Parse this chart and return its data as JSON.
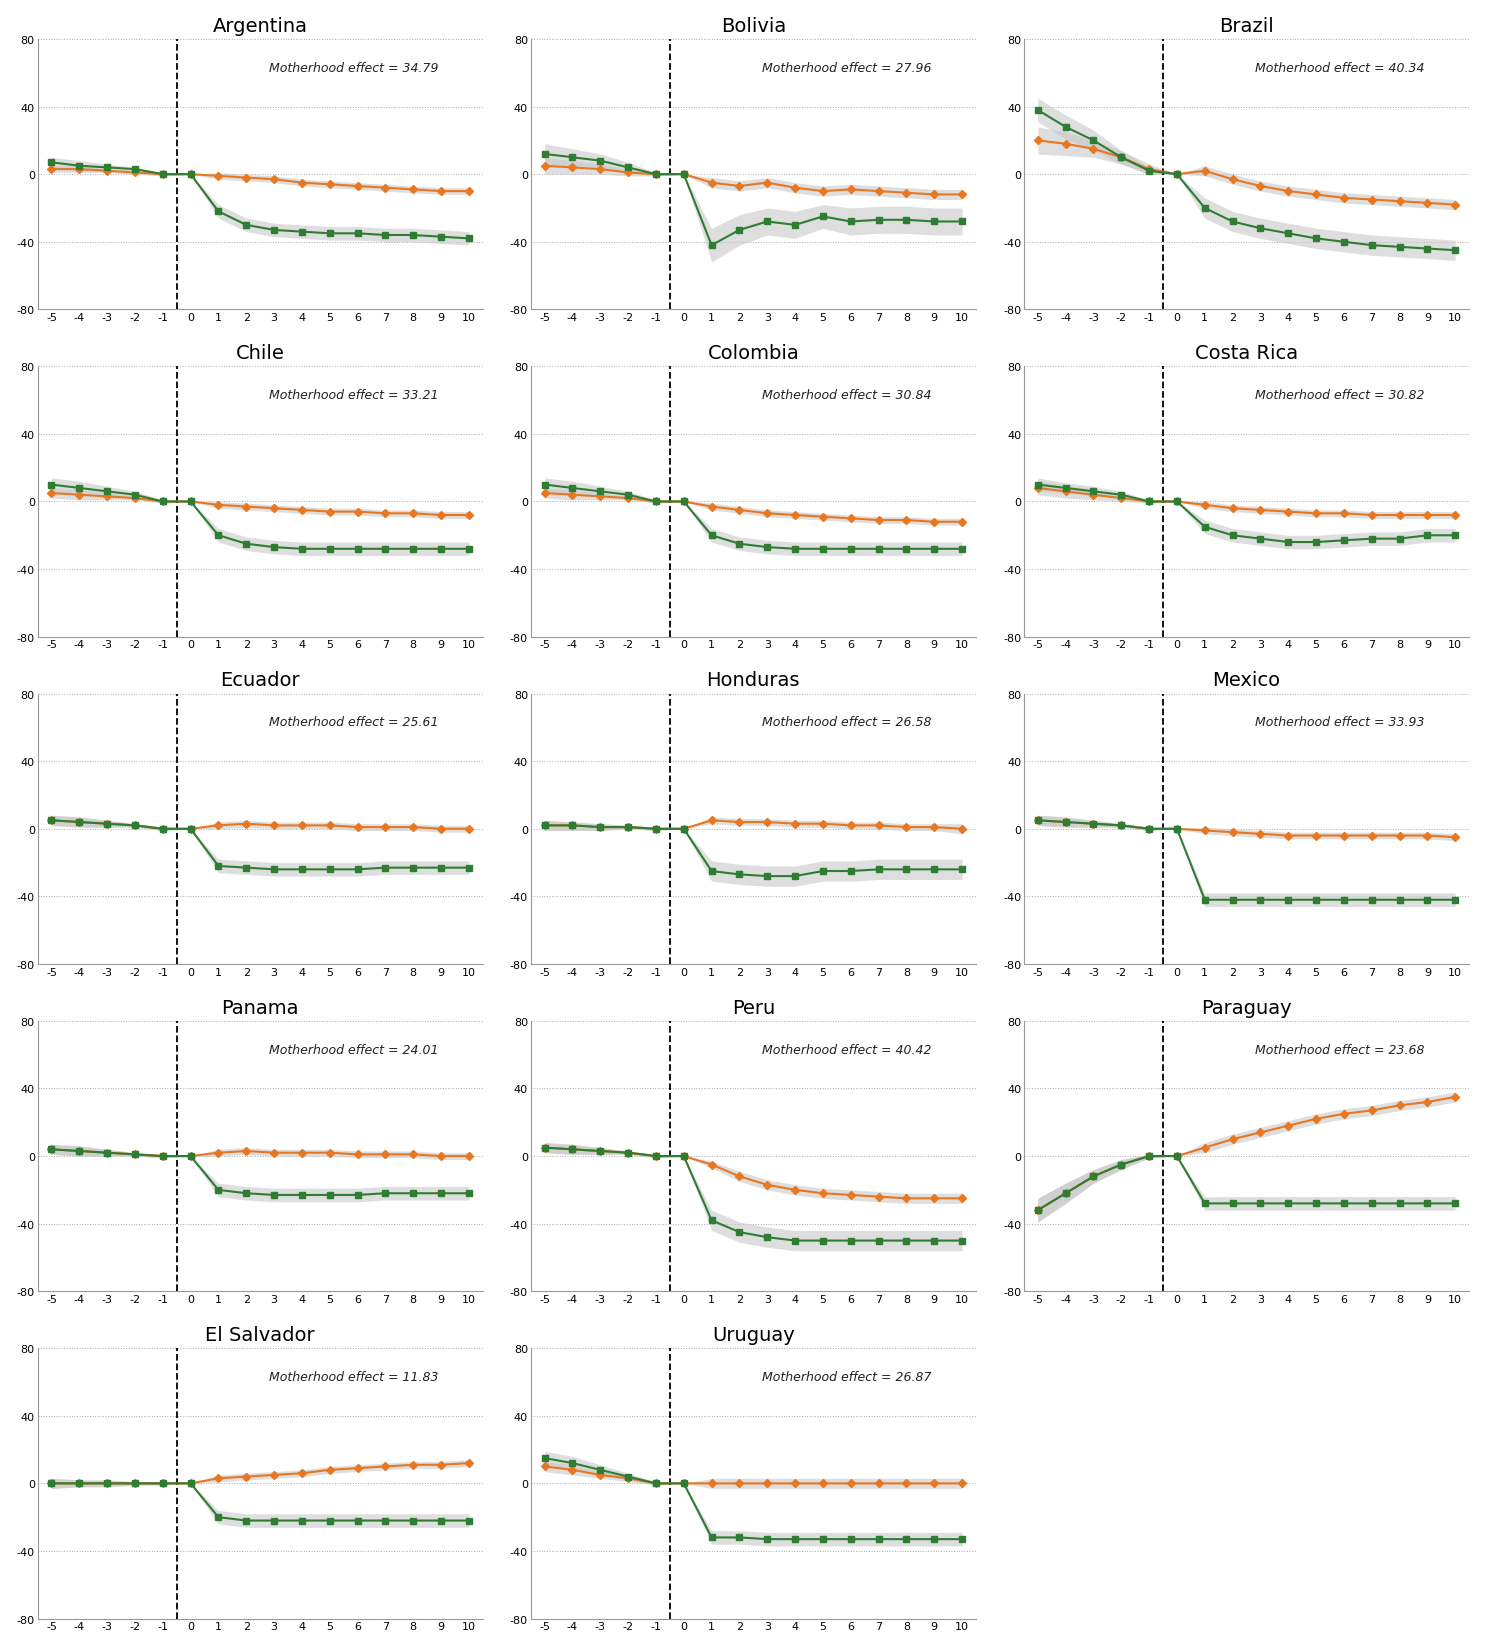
{
  "countries": [
    "Argentina",
    "Bolivia",
    "Brazil",
    "Chile",
    "Colombia",
    "Costa Rica",
    "Ecuador",
    "Honduras",
    "Mexico",
    "Panama",
    "Peru",
    "Paraguay",
    "El Salvador",
    "Uruguay"
  ],
  "motherhood_effects": {
    "Argentina": 34.79,
    "Bolivia": 27.96,
    "Brazil": 40.34,
    "Chile": 33.21,
    "Colombia": 30.84,
    "Costa Rica": 30.82,
    "Ecuador": 25.61,
    "Honduras": 26.58,
    "Mexico": 33.93,
    "Panama": 24.01,
    "Peru": 40.42,
    "Paraguay": 23.68,
    "El Salvador": 11.83,
    "Uruguay": 26.87
  },
  "x_range": [
    -5,
    -4,
    -3,
    -2,
    -1,
    0,
    1,
    2,
    3,
    4,
    5,
    6,
    7,
    8,
    9,
    10
  ],
  "orange_color": "#E87722",
  "green_color": "#2E7D32",
  "ci_color": "#C8C8C8",
  "grid_color": "#AAAAAA",
  "orange_data": {
    "Argentina": [
      3,
      3,
      2,
      1,
      0,
      0,
      -1,
      -2,
      -3,
      -5,
      -6,
      -7,
      -8,
      -9,
      -10,
      -10
    ],
    "Bolivia": [
      5,
      4,
      3,
      1,
      0,
      0,
      -5,
      -7,
      -5,
      -8,
      -10,
      -9,
      -10,
      -11,
      -12,
      -12
    ],
    "Brazil": [
      20,
      18,
      15,
      10,
      3,
      0,
      2,
      -3,
      -7,
      -10,
      -12,
      -14,
      -15,
      -16,
      -17,
      -18
    ],
    "Chile": [
      5,
      4,
      3,
      2,
      0,
      0,
      -2,
      -3,
      -4,
      -5,
      -6,
      -6,
      -7,
      -7,
      -8,
      -8
    ],
    "Colombia": [
      5,
      4,
      3,
      2,
      0,
      0,
      -3,
      -5,
      -7,
      -8,
      -9,
      -10,
      -11,
      -11,
      -12,
      -12
    ],
    "Costa Rica": [
      8,
      6,
      4,
      2,
      0,
      0,
      -2,
      -4,
      -5,
      -6,
      -7,
      -7,
      -8,
      -8,
      -8,
      -8
    ],
    "Ecuador": [
      5,
      4,
      3,
      2,
      0,
      0,
      2,
      3,
      2,
      2,
      2,
      1,
      1,
      1,
      0,
      0
    ],
    "Honduras": [
      2,
      2,
      1,
      1,
      0,
      0,
      5,
      4,
      4,
      3,
      3,
      2,
      2,
      1,
      1,
      0
    ],
    "Mexico": [
      5,
      4,
      3,
      2,
      0,
      0,
      -1,
      -2,
      -3,
      -4,
      -4,
      -4,
      -4,
      -4,
      -4,
      -5
    ],
    "Panama": [
      4,
      3,
      2,
      1,
      0,
      0,
      2,
      3,
      2,
      2,
      2,
      1,
      1,
      1,
      0,
      0
    ],
    "Peru": [
      5,
      4,
      3,
      2,
      0,
      0,
      -5,
      -12,
      -17,
      -20,
      -22,
      -23,
      -24,
      -25,
      -25,
      -25
    ],
    "Paraguay": [
      -32,
      -22,
      -12,
      -5,
      0,
      0,
      5,
      10,
      14,
      18,
      22,
      25,
      27,
      30,
      32,
      35
    ],
    "El Salvador": [
      0,
      0,
      0,
      0,
      0,
      0,
      3,
      4,
      5,
      6,
      8,
      9,
      10,
      11,
      11,
      12
    ],
    "Uruguay": [
      10,
      8,
      5,
      3,
      0,
      0,
      0,
      0,
      0,
      0,
      0,
      0,
      0,
      0,
      0,
      0
    ]
  },
  "green_data": {
    "Argentina": [
      7,
      5,
      4,
      3,
      0,
      0,
      -22,
      -30,
      -33,
      -34,
      -35,
      -35,
      -36,
      -36,
      -37,
      -38
    ],
    "Bolivia": [
      12,
      10,
      8,
      4,
      0,
      0,
      -42,
      -33,
      -28,
      -30,
      -25,
      -28,
      -27,
      -27,
      -28,
      -28
    ],
    "Brazil": [
      38,
      28,
      20,
      10,
      2,
      0,
      -20,
      -28,
      -32,
      -35,
      -38,
      -40,
      -42,
      -43,
      -44,
      -45
    ],
    "Chile": [
      10,
      8,
      6,
      4,
      0,
      0,
      -20,
      -25,
      -27,
      -28,
      -28,
      -28,
      -28,
      -28,
      -28,
      -28
    ],
    "Colombia": [
      10,
      8,
      6,
      4,
      0,
      0,
      -20,
      -25,
      -27,
      -28,
      -28,
      -28,
      -28,
      -28,
      -28,
      -28
    ],
    "Costa Rica": [
      10,
      8,
      6,
      4,
      0,
      0,
      -15,
      -20,
      -22,
      -24,
      -24,
      -23,
      -22,
      -22,
      -20,
      -20
    ],
    "Ecuador": [
      5,
      4,
      3,
      2,
      0,
      0,
      -22,
      -23,
      -24,
      -24,
      -24,
      -24,
      -23,
      -23,
      -23,
      -23
    ],
    "Honduras": [
      2,
      2,
      1,
      1,
      0,
      0,
      -25,
      -27,
      -28,
      -28,
      -25,
      -25,
      -24,
      -24,
      -24,
      -24
    ],
    "Mexico": [
      5,
      4,
      3,
      2,
      0,
      0,
      -42,
      -42,
      -42,
      -42,
      -42,
      -42,
      -42,
      -42,
      -42,
      -42
    ],
    "Panama": [
      4,
      3,
      2,
      1,
      0,
      0,
      -20,
      -22,
      -23,
      -23,
      -23,
      -23,
      -22,
      -22,
      -22,
      -22
    ],
    "Peru": [
      5,
      4,
      3,
      2,
      0,
      0,
      -38,
      -45,
      -48,
      -50,
      -50,
      -50,
      -50,
      -50,
      -50,
      -50
    ],
    "Paraguay": [
      -32,
      -22,
      -12,
      -5,
      0,
      0,
      -28,
      -28,
      -28,
      -28,
      -28,
      -28,
      -28,
      -28,
      -28,
      -28
    ],
    "El Salvador": [
      0,
      0,
      0,
      0,
      0,
      0,
      -20,
      -22,
      -22,
      -22,
      -22,
      -22,
      -22,
      -22,
      -22,
      -22
    ],
    "Uruguay": [
      15,
      12,
      8,
      4,
      0,
      0,
      -32,
      -32,
      -33,
      -33,
      -33,
      -33,
      -33,
      -33,
      -33,
      -33
    ]
  },
  "orange_ci_upper": {
    "Argentina": [
      5,
      5,
      3,
      2,
      1,
      0,
      1,
      0,
      -1,
      -3,
      -4,
      -5,
      -6,
      -7,
      -8,
      -8
    ],
    "Bolivia": [
      10,
      8,
      6,
      3,
      1,
      0,
      -2,
      -4,
      -2,
      -5,
      -7,
      -6,
      -7,
      -8,
      -9,
      -9
    ],
    "Brazil": [
      28,
      25,
      20,
      14,
      6,
      0,
      5,
      0,
      -4,
      -7,
      -9,
      -11,
      -12,
      -13,
      -14,
      -15
    ],
    "Chile": [
      8,
      7,
      5,
      3,
      1,
      0,
      0,
      -1,
      -2,
      -3,
      -4,
      -4,
      -5,
      -5,
      -6,
      -6
    ],
    "Colombia": [
      8,
      7,
      5,
      3,
      1,
      0,
      -1,
      -3,
      -5,
      -6,
      -7,
      -8,
      -9,
      -9,
      -10,
      -10
    ],
    "Costa Rica": [
      12,
      10,
      7,
      4,
      1,
      0,
      0,
      -2,
      -3,
      -4,
      -5,
      -5,
      -6,
      -6,
      -6,
      -6
    ],
    "Ecuador": [
      8,
      7,
      5,
      3,
      1,
      0,
      4,
      5,
      4,
      4,
      4,
      3,
      3,
      3,
      2,
      2
    ],
    "Honduras": [
      5,
      4,
      3,
      2,
      1,
      0,
      7,
      6,
      6,
      5,
      5,
      4,
      4,
      3,
      3,
      3
    ],
    "Mexico": [
      8,
      7,
      5,
      3,
      1,
      0,
      1,
      0,
      -1,
      -2,
      -2,
      -2,
      -2,
      -2,
      -2,
      -3
    ],
    "Panama": [
      7,
      6,
      4,
      2,
      1,
      0,
      4,
      5,
      4,
      4,
      4,
      3,
      3,
      3,
      2,
      2
    ],
    "Peru": [
      8,
      7,
      5,
      3,
      1,
      0,
      -3,
      -9,
      -14,
      -17,
      -19,
      -20,
      -21,
      -22,
      -22,
      -22
    ],
    "Paraguay": [
      -25,
      -16,
      -8,
      -2,
      1,
      0,
      8,
      13,
      17,
      21,
      25,
      28,
      30,
      33,
      35,
      38
    ],
    "El Salvador": [
      3,
      2,
      2,
      1,
      1,
      0,
      5,
      6,
      7,
      8,
      10,
      11,
      12,
      13,
      13,
      14
    ],
    "Uruguay": [
      13,
      11,
      7,
      5,
      1,
      0,
      3,
      3,
      3,
      3,
      3,
      3,
      3,
      3,
      3,
      3
    ]
  },
  "orange_ci_lower": {
    "Argentina": [
      1,
      1,
      1,
      0,
      -1,
      0,
      -3,
      -4,
      -5,
      -7,
      -8,
      -9,
      -10,
      -11,
      -12,
      -12
    ],
    "Bolivia": [
      0,
      0,
      0,
      -1,
      -1,
      0,
      -8,
      -10,
      -8,
      -11,
      -13,
      -12,
      -13,
      -14,
      -15,
      -15
    ],
    "Brazil": [
      12,
      11,
      10,
      6,
      0,
      0,
      -1,
      -6,
      -10,
      -13,
      -15,
      -17,
      -18,
      -19,
      -20,
      -21
    ],
    "Chile": [
      2,
      1,
      1,
      1,
      -1,
      0,
      -4,
      -5,
      -6,
      -7,
      -8,
      -8,
      -9,
      -9,
      -10,
      -10
    ],
    "Colombia": [
      2,
      1,
      1,
      1,
      -1,
      0,
      -5,
      -7,
      -9,
      -10,
      -11,
      -12,
      -13,
      -13,
      -14,
      -14
    ],
    "Costa Rica": [
      4,
      2,
      1,
      0,
      -1,
      0,
      -4,
      -6,
      -7,
      -8,
      -9,
      -9,
      -10,
      -10,
      -10,
      -10
    ],
    "Ecuador": [
      2,
      1,
      1,
      1,
      -1,
      0,
      0,
      1,
      0,
      0,
      0,
      -1,
      -1,
      -1,
      -2,
      -2
    ],
    "Honduras": [
      -1,
      -1,
      -1,
      0,
      -1,
      0,
      3,
      2,
      2,
      1,
      1,
      0,
      0,
      -1,
      -1,
      -3
    ],
    "Mexico": [
      2,
      1,
      1,
      1,
      -1,
      0,
      -3,
      -4,
      -5,
      -6,
      -6,
      -6,
      -6,
      -6,
      -6,
      -7
    ],
    "Panama": [
      1,
      0,
      0,
      0,
      -1,
      0,
      0,
      1,
      0,
      0,
      0,
      -1,
      -1,
      -1,
      -2,
      -2
    ],
    "Peru": [
      2,
      1,
      1,
      1,
      -1,
      0,
      -7,
      -15,
      -20,
      -23,
      -25,
      -26,
      -27,
      -28,
      -28,
      -28
    ],
    "Paraguay": [
      -39,
      -28,
      -16,
      -8,
      -1,
      0,
      2,
      7,
      11,
      15,
      19,
      22,
      24,
      27,
      29,
      32
    ],
    "El Salvador": [
      -3,
      -2,
      -2,
      -1,
      -1,
      0,
      1,
      2,
      3,
      4,
      6,
      7,
      8,
      9,
      9,
      10
    ],
    "Uruguay": [
      7,
      5,
      3,
      1,
      -1,
      0,
      -3,
      -3,
      -3,
      -3,
      -3,
      -3,
      -3,
      -3,
      -3,
      -3
    ]
  },
  "green_ci_upper": {
    "Argentina": [
      10,
      8,
      6,
      4,
      1,
      0,
      -18,
      -26,
      -29,
      -30,
      -31,
      -31,
      -32,
      -32,
      -33,
      -34
    ],
    "Bolivia": [
      18,
      15,
      12,
      7,
      1,
      0,
      -32,
      -24,
      -20,
      -22,
      -18,
      -20,
      -19,
      -19,
      -20,
      -20
    ],
    "Brazil": [
      45,
      35,
      26,
      14,
      4,
      0,
      -14,
      -22,
      -26,
      -29,
      -32,
      -34,
      -36,
      -37,
      -38,
      -39
    ],
    "Chile": [
      14,
      12,
      9,
      6,
      1,
      0,
      -16,
      -21,
      -23,
      -24,
      -24,
      -24,
      -24,
      -24,
      -24,
      -24
    ],
    "Colombia": [
      14,
      12,
      9,
      6,
      1,
      0,
      -16,
      -21,
      -23,
      -24,
      -24,
      -24,
      -24,
      -24,
      -24,
      -24
    ],
    "Costa Rica": [
      14,
      11,
      9,
      6,
      1,
      0,
      -11,
      -16,
      -18,
      -20,
      -20,
      -19,
      -18,
      -18,
      -16,
      -16
    ],
    "Ecuador": [
      8,
      7,
      5,
      3,
      1,
      0,
      -18,
      -19,
      -20,
      -20,
      -20,
      -20,
      -19,
      -19,
      -19,
      -19
    ],
    "Honduras": [
      5,
      4,
      3,
      2,
      1,
      0,
      -19,
      -21,
      -22,
      -22,
      -19,
      -19,
      -18,
      -18,
      -18,
      -18
    ],
    "Mexico": [
      8,
      7,
      5,
      3,
      1,
      0,
      -38,
      -38,
      -38,
      -38,
      -38,
      -38,
      -38,
      -38,
      -38,
      -38
    ],
    "Panama": [
      7,
      6,
      4,
      2,
      1,
      0,
      -16,
      -18,
      -19,
      -19,
      -19,
      -19,
      -18,
      -18,
      -18,
      -18
    ],
    "Peru": [
      8,
      7,
      5,
      3,
      1,
      0,
      -32,
      -39,
      -42,
      -44,
      -44,
      -44,
      -44,
      -44,
      -44,
      -44
    ],
    "Paraguay": [
      -25,
      -16,
      -8,
      -2,
      1,
      0,
      -24,
      -24,
      -24,
      -24,
      -24,
      -24,
      -24,
      -24,
      -24,
      -24
    ],
    "El Salvador": [
      3,
      2,
      2,
      1,
      1,
      0,
      -16,
      -18,
      -18,
      -18,
      -18,
      -18,
      -18,
      -18,
      -18,
      -18
    ],
    "Uruguay": [
      19,
      16,
      11,
      6,
      1,
      0,
      -28,
      -28,
      -29,
      -29,
      -29,
      -29,
      -29,
      -29,
      -29,
      -29
    ]
  },
  "green_ci_lower": {
    "Argentina": [
      4,
      2,
      2,
      2,
      -1,
      0,
      -26,
      -34,
      -37,
      -38,
      -39,
      -39,
      -40,
      -40,
      -41,
      -42
    ],
    "Bolivia": [
      6,
      5,
      4,
      1,
      -1,
      0,
      -52,
      -42,
      -36,
      -38,
      -32,
      -36,
      -35,
      -35,
      -36,
      -36
    ],
    "Brazil": [
      31,
      21,
      14,
      6,
      0,
      0,
      -26,
      -34,
      -38,
      -41,
      -44,
      -46,
      -48,
      -49,
      -50,
      -51
    ],
    "Chile": [
      6,
      4,
      3,
      2,
      -1,
      0,
      -24,
      -29,
      -31,
      -32,
      -32,
      -32,
      -32,
      -32,
      -32,
      -32
    ],
    "Colombia": [
      6,
      4,
      3,
      2,
      -1,
      0,
      -24,
      -29,
      -31,
      -32,
      -32,
      -32,
      -32,
      -32,
      -32,
      -32
    ],
    "Costa Rica": [
      6,
      5,
      3,
      2,
      -1,
      0,
      -19,
      -24,
      -26,
      -28,
      -28,
      -27,
      -26,
      -26,
      -24,
      -24
    ],
    "Ecuador": [
      2,
      1,
      1,
      1,
      -1,
      0,
      -26,
      -27,
      -28,
      -28,
      -28,
      -28,
      -27,
      -27,
      -27,
      -27
    ],
    "Honduras": [
      -1,
      -1,
      -1,
      0,
      -1,
      0,
      -31,
      -33,
      -34,
      -34,
      -31,
      -31,
      -30,
      -30,
      -30,
      -30
    ],
    "Mexico": [
      2,
      1,
      1,
      1,
      -1,
      0,
      -46,
      -46,
      -46,
      -46,
      -46,
      -46,
      -46,
      -46,
      -46,
      -46
    ],
    "Panama": [
      1,
      0,
      0,
      0,
      -1,
      0,
      -24,
      -26,
      -27,
      -27,
      -27,
      -27,
      -26,
      -26,
      -26,
      -26
    ],
    "Peru": [
      2,
      1,
      1,
      1,
      -1,
      0,
      -44,
      -51,
      -54,
      -56,
      -56,
      -56,
      -56,
      -56,
      -56,
      -56
    ],
    "Paraguay": [
      -39,
      -28,
      -16,
      -8,
      -1,
      0,
      -32,
      -32,
      -32,
      -32,
      -32,
      -32,
      -32,
      -32,
      -32,
      -32
    ],
    "El Salvador": [
      -3,
      -2,
      -2,
      -1,
      -1,
      0,
      -24,
      -26,
      -26,
      -26,
      -26,
      -26,
      -26,
      -26,
      -26,
      -26
    ],
    "Uruguay": [
      11,
      8,
      5,
      2,
      -1,
      0,
      -36,
      -36,
      -37,
      -37,
      -37,
      -37,
      -37,
      -37,
      -37,
      -37
    ]
  },
  "country_positions": [
    [
      0,
      0
    ],
    [
      0,
      1
    ],
    [
      0,
      2
    ],
    [
      1,
      0
    ],
    [
      1,
      1
    ],
    [
      1,
      2
    ],
    [
      2,
      0
    ],
    [
      2,
      1
    ],
    [
      2,
      2
    ],
    [
      3,
      0
    ],
    [
      3,
      1
    ],
    [
      3,
      2
    ],
    [
      4,
      0
    ],
    [
      4,
      1
    ]
  ],
  "ylim": [
    -80,
    80
  ],
  "yticks": [
    -80,
    -40,
    0,
    40,
    80
  ],
  "background_color": "#FFFFFF"
}
